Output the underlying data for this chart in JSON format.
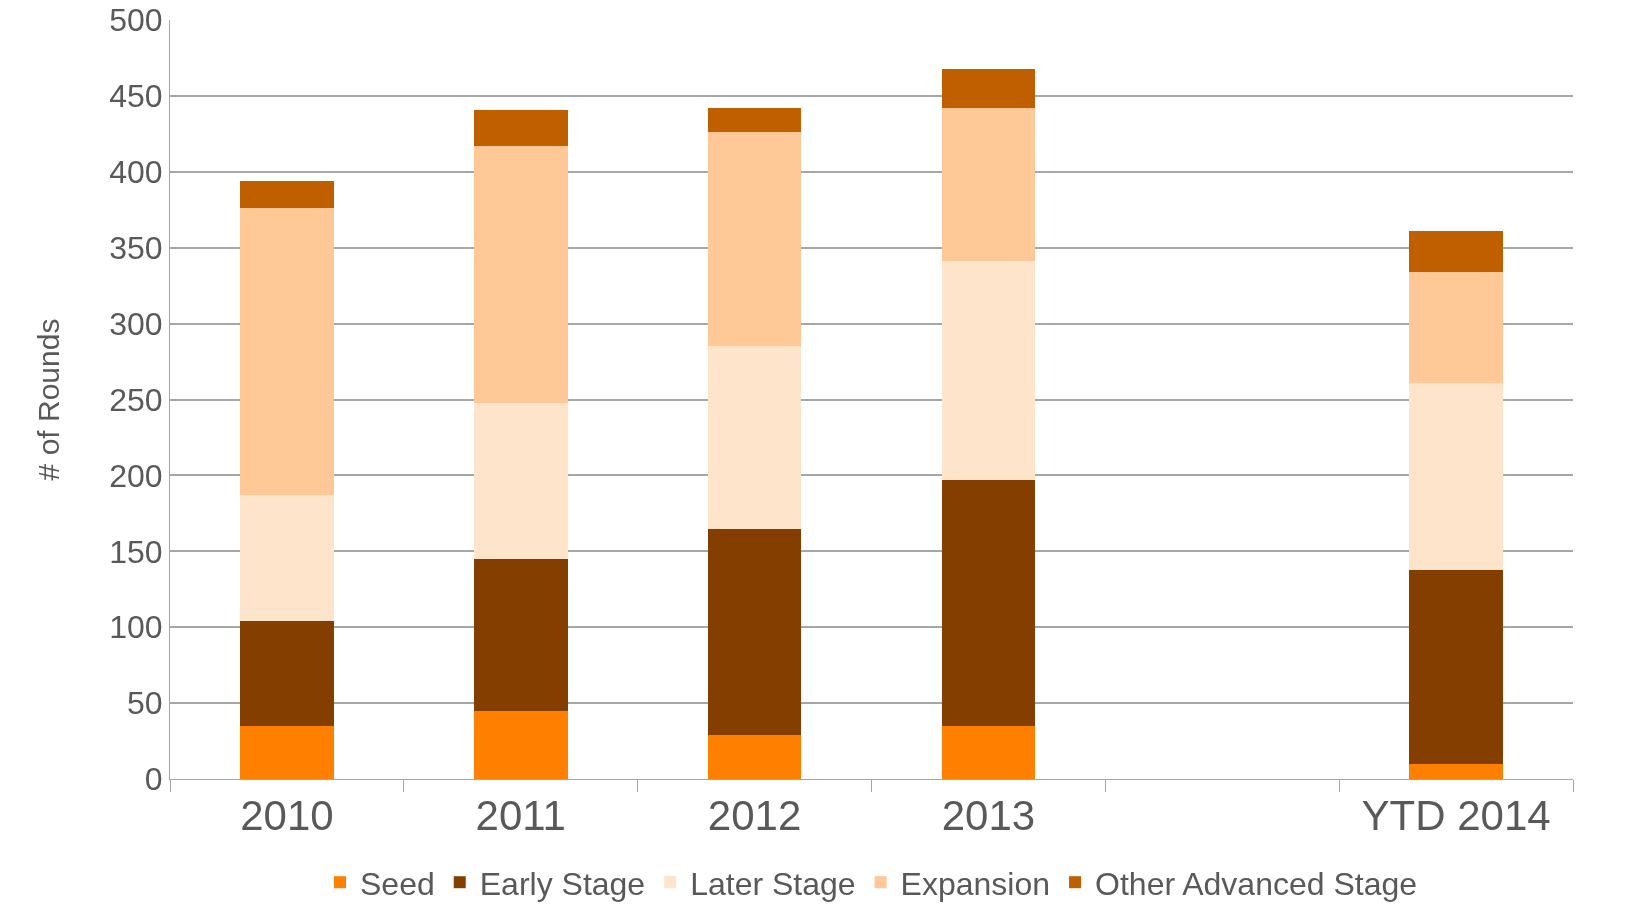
{
  "chart_data": {
    "type": "bar",
    "stacked": true,
    "ylabel": "# of Rounds",
    "categories": [
      "2010",
      "2011",
      "2012",
      "2013",
      null,
      "YTD 2014"
    ],
    "series": [
      {
        "name": "Seed",
        "color": "#ff8000",
        "values": [
          35,
          45,
          29,
          35,
          null,
          10
        ]
      },
      {
        "name": "Early Stage",
        "color": "#843f00",
        "values": [
          69,
          100,
          136,
          162,
          null,
          128
        ]
      },
      {
        "name": "Later Stage",
        "color": "#ffe4cc",
        "values": [
          83,
          103,
          120,
          144,
          null,
          123
        ]
      },
      {
        "name": "Expansion",
        "color": "#ffc896",
        "values": [
          189,
          169,
          141,
          101,
          null,
          73
        ]
      },
      {
        "name": "Other Advanced Stage",
        "color": "#bf5f00",
        "values": [
          18,
          24,
          16,
          26,
          null,
          27
        ]
      }
    ],
    "ylim": [
      0,
      500
    ],
    "yticks": [
      0,
      50,
      100,
      150,
      200,
      250,
      300,
      350,
      400,
      450,
      500
    ],
    "grid": "y",
    "legend": "bottom"
  }
}
